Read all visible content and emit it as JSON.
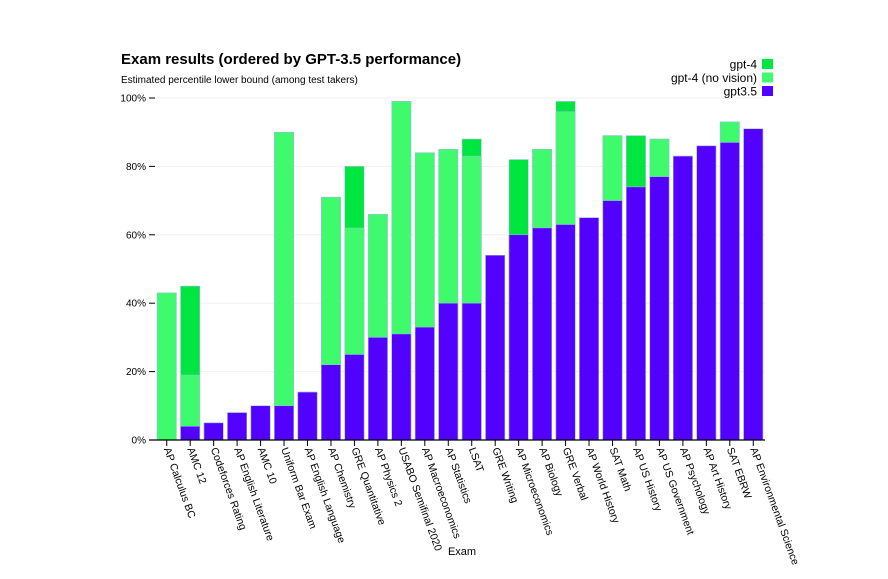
{
  "chart_data": {
    "type": "bar",
    "stacked": "overlay",
    "title": "Exam results (ordered by GPT-3.5 performance)",
    "subtitle": "Estimated percentile lower bound (among test takers)",
    "xlabel": "Exam",
    "ylabel": "",
    "ylim": [
      0,
      100
    ],
    "yticks": [
      0,
      20,
      40,
      60,
      80,
      100
    ],
    "ytick_labels": [
      "0%",
      "20%",
      "40%",
      "60%",
      "80%",
      "100%"
    ],
    "grid": true,
    "legend_position": "top-right",
    "categories": [
      "AP Calculus BC",
      "AMC 12",
      "Codeforces Rating",
      "AP English Literature",
      "AMC 10",
      "Uniform Bar Exam",
      "AP English Language",
      "AP Chemistry",
      "GRE Quantitative",
      "AP Physics 2",
      "USABO Semifinal 2020",
      "AP Macroeconomics",
      "AP Statistics",
      "LSAT",
      "GRE Writing",
      "AP Microeconomics",
      "AP Biology",
      "GRE Verbal",
      "AP World History",
      "SAT Math",
      "AP US History",
      "AP US Government",
      "AP Psychology",
      "AP Art History",
      "SAT EBRW",
      "AP Environmental Science"
    ],
    "series": [
      {
        "name": "gpt-4",
        "color": "#00e640",
        "values": [
          43,
          45,
          5,
          8,
          10,
          90,
          14,
          71,
          80,
          66,
          99,
          84,
          85,
          88,
          54,
          82,
          85,
          99,
          65,
          89,
          89,
          88,
          83,
          86,
          93,
          91
        ]
      },
      {
        "name": "gpt-4 (no vision)",
        "color": "#40fa6e",
        "values": [
          43,
          19,
          5,
          8,
          10,
          90,
          14,
          71,
          62,
          66,
          99,
          84,
          85,
          83,
          54,
          60,
          85,
          96,
          65,
          89,
          74,
          88,
          83,
          86,
          93,
          91
        ]
      },
      {
        "name": "gpt3.5",
        "color": "#5200ff",
        "values": [
          0,
          4,
          5,
          8,
          10,
          10,
          14,
          22,
          25,
          30,
          31,
          33,
          40,
          40,
          54,
          60,
          62,
          63,
          65,
          70,
          74,
          77,
          83,
          86,
          87,
          91
        ]
      }
    ]
  }
}
